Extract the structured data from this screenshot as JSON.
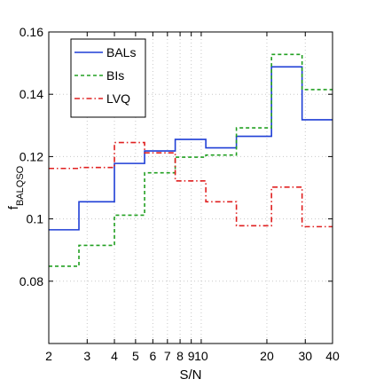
{
  "chart_data": {
    "type": "line",
    "title": "",
    "xlabel": "S/N",
    "ylabel": "f",
    "ylabel_sub": "BALQSO",
    "xscale": "log",
    "xlim": [
      2,
      40
    ],
    "ylim": [
      0.06,
      0.16
    ],
    "grid": true,
    "legend_position": "top-left",
    "x_ticks": [
      2,
      3,
      4,
      5,
      6,
      7,
      8,
      9,
      10,
      20,
      30,
      40
    ],
    "x_tick_labels": [
      "2",
      "3",
      "4",
      "5",
      "6",
      "7",
      "8",
      "9",
      "10",
      "20",
      "30",
      "40"
    ],
    "y_ticks": [
      0.08,
      0.1,
      0.12,
      0.14,
      0.16
    ],
    "y_tick_labels": [
      "0.08",
      "0.1",
      "0.12",
      "0.14",
      "0.16"
    ],
    "bin_edges": [
      2,
      2.75,
      4,
      5.5,
      7.6,
      10.5,
      14.5,
      21,
      29,
      40
    ],
    "series": [
      {
        "name": "BALs",
        "color": "#1f3fd6",
        "dash": "solid",
        "values": [
          0.0965,
          0.1055,
          0.1178,
          0.1218,
          0.1255,
          0.1228,
          0.1265,
          0.1488,
          0.1318
        ]
      },
      {
        "name": "BIs",
        "color": "#22a022",
        "dash": "dashed",
        "values": [
          0.0848,
          0.0915,
          0.1012,
          0.1148,
          0.1198,
          0.1205,
          0.1292,
          0.1528,
          0.1415
        ]
      },
      {
        "name": "LVQ",
        "color": "#e02020",
        "dash": "dashdot",
        "values": [
          0.1162,
          0.1165,
          0.1245,
          0.1212,
          0.1122,
          0.1055,
          0.0978,
          0.1102,
          0.0975
        ]
      }
    ]
  }
}
